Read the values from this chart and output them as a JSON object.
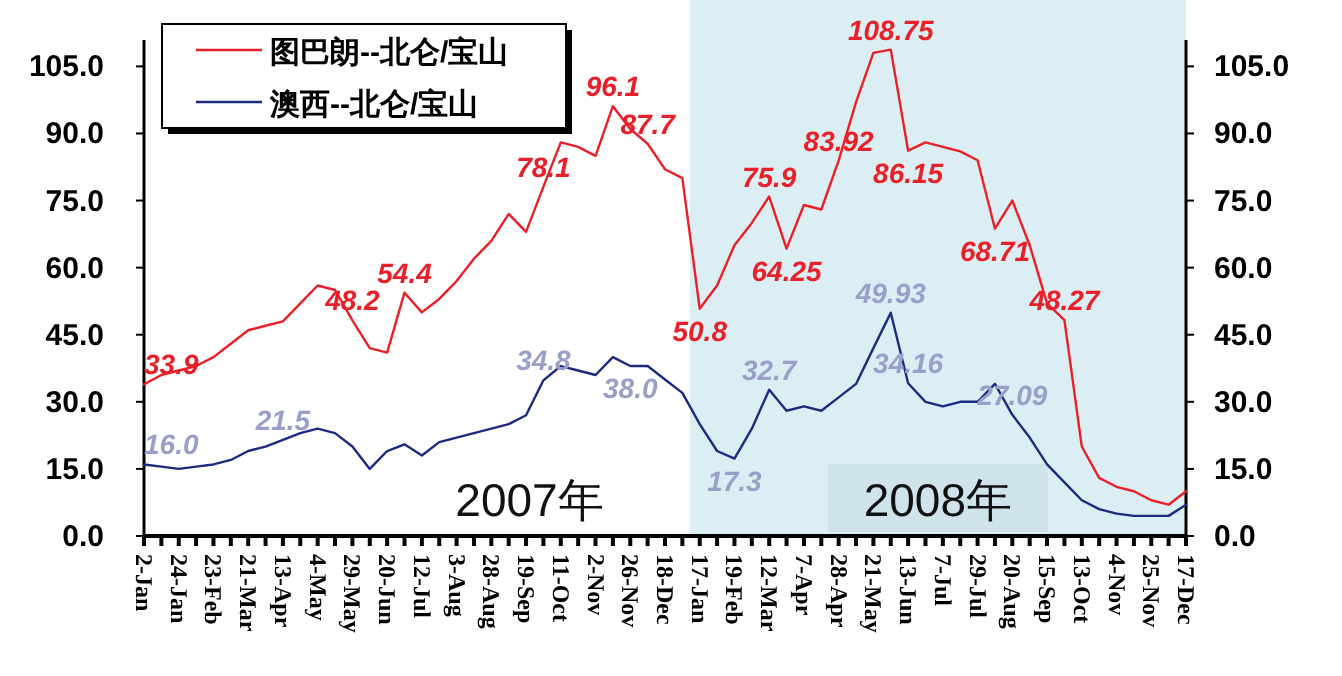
{
  "chart_data": {
    "type": "line",
    "categories": [
      "2-Jan",
      null,
      "24-Jan",
      null,
      "23-Feb",
      null,
      "21-Mar",
      null,
      "13-Apr",
      null,
      "4-May",
      null,
      "29-May",
      null,
      "20-Jun",
      null,
      "12-Jul",
      null,
      "3-Aug",
      null,
      "28-Aug",
      null,
      "19-Sep",
      null,
      "11-Oct",
      null,
      "2-Nov",
      null,
      "26-Nov",
      null,
      "18-Dec",
      null,
      "17-Jan",
      null,
      "19-Feb",
      null,
      "12-Mar",
      null,
      "7-Apr",
      null,
      "28-Apr",
      null,
      "21-May",
      null,
      "13-Jun",
      null,
      "7-Jul",
      null,
      "29-Jul",
      null,
      "20-Aug",
      null,
      "15-Sep",
      null,
      "13-Oct",
      null,
      "4-Nov",
      null,
      "25-Nov",
      null,
      "17-Dec"
    ],
    "series": [
      {
        "name": "图巴朗--北仑/宝山",
        "color": "#e8202a",
        "values": [
          33.9,
          36,
          37,
          38,
          40,
          43,
          46,
          47,
          48,
          52,
          56,
          55,
          48.2,
          42,
          41,
          54.4,
          50,
          53,
          57,
          62,
          66,
          72,
          68,
          78.1,
          88,
          87,
          85,
          96.1,
          91,
          87.7,
          82,
          80,
          50.8,
          56,
          65,
          70,
          75.9,
          64.25,
          74,
          73,
          83.92,
          97,
          108,
          108.75,
          86.15,
          88,
          87,
          86,
          84,
          68.71,
          75,
          65,
          52,
          48.27,
          20,
          13,
          11,
          10,
          8,
          7,
          10
        ],
        "value_labels": [
          "33.9",
          null,
          null,
          null,
          null,
          null,
          null,
          null,
          null,
          null,
          null,
          null,
          "48.2",
          null,
          null,
          "54.4",
          null,
          null,
          null,
          null,
          null,
          null,
          null,
          "78.1",
          null,
          null,
          null,
          "96.1",
          null,
          "87.7",
          null,
          null,
          "50.8",
          null,
          null,
          null,
          "75.9",
          "64.25",
          null,
          null,
          "83.92",
          null,
          null,
          "108.75",
          "86.15",
          null,
          null,
          null,
          null,
          "68.71",
          null,
          null,
          null,
          "48.27",
          null,
          null,
          null,
          null,
          null,
          null,
          null
        ]
      },
      {
        "name": "澳西--北仑/宝山",
        "color": "#1c2a80",
        "values": [
          16.0,
          15.5,
          15,
          15.5,
          16,
          17,
          19,
          20,
          21.5,
          23,
          24,
          23,
          20,
          15,
          19,
          20.5,
          18,
          21,
          22,
          23,
          24,
          25,
          27,
          34.8,
          38,
          37,
          36,
          40,
          38.0,
          38,
          35,
          32,
          25,
          19,
          17.3,
          24,
          32.7,
          28,
          29,
          28,
          31,
          34,
          42,
          49.93,
          34.16,
          30,
          29,
          30,
          30,
          34,
          27.09,
          22,
          16,
          12,
          8,
          6,
          5,
          4.5,
          4.5,
          4.5,
          7
        ],
        "value_labels": [
          "16.0",
          null,
          null,
          null,
          null,
          null,
          null,
          null,
          "21.5",
          null,
          null,
          null,
          null,
          null,
          null,
          null,
          null,
          null,
          null,
          null,
          null,
          null,
          null,
          "34.8",
          null,
          null,
          null,
          null,
          "38.0",
          null,
          null,
          null,
          null,
          null,
          "17.3",
          null,
          "32.7",
          null,
          null,
          null,
          null,
          null,
          null,
          "49.93",
          "34.16",
          null,
          null,
          null,
          null,
          null,
          "27.09",
          null,
          null,
          null,
          null,
          null,
          null,
          null,
          null,
          null,
          null
        ]
      }
    ],
    "ylim": [
      0,
      110
    ],
    "yticks": [
      {
        "value": 0,
        "label": "0.0"
      },
      {
        "value": 15,
        "label": "15.0"
      },
      {
        "value": 30,
        "label": "30.0"
      },
      {
        "value": 45,
        "label": "45.0"
      },
      {
        "value": 60,
        "label": "60.0"
      },
      {
        "value": 75,
        "label": "75.0"
      },
      {
        "value": 90,
        "label": "90.0"
      },
      {
        "value": 105,
        "label": "105.0"
      }
    ],
    "y2lim": [
      0,
      110
    ],
    "y2ticks": [
      {
        "value": 0,
        "label": "0.0"
      },
      {
        "value": 15,
        "label": "15.0"
      },
      {
        "value": 30,
        "label": "30.0"
      },
      {
        "value": 45,
        "label": "45.0"
      },
      {
        "value": 60,
        "label": "60.0"
      },
      {
        "value": 75,
        "label": "75.0"
      },
      {
        "value": 90,
        "label": "90.0"
      },
      {
        "value": 105,
        "label": "105.0"
      }
    ],
    "bands": [
      {
        "axis": "x",
        "from": "17-Jan",
        "to": "17-Dec",
        "label": "2008年",
        "color": "#dbeef4"
      }
    ],
    "annotations": [
      "2007年"
    ],
    "legend": "top left"
  }
}
